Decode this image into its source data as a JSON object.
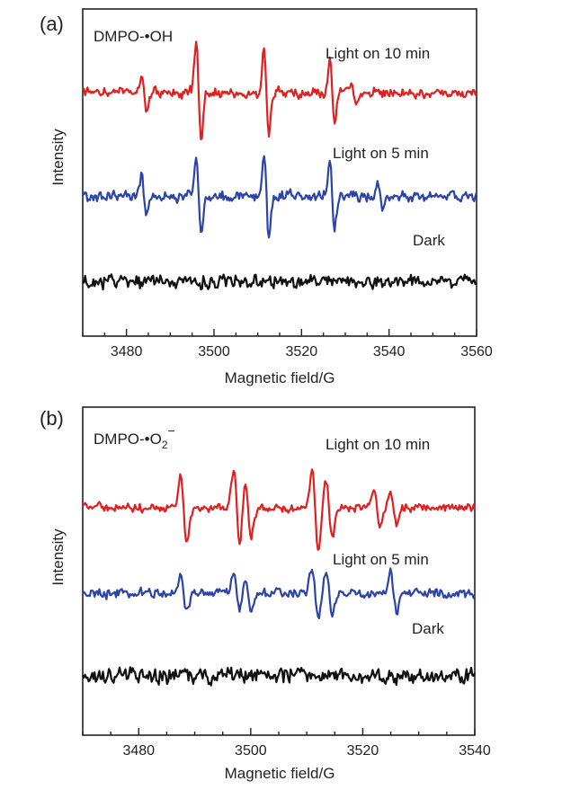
{
  "chart_data": [
    {
      "type": "line",
      "panel_label": "(a)",
      "species_label": "DMPO-•OH",
      "xlabel": "Magnetic field/G",
      "ylabel": "Intensity",
      "xlim": [
        3470,
        3560
      ],
      "xticks": [
        3480,
        3500,
        3520,
        3540,
        3560
      ],
      "y_axis_ticks_shown": false,
      "grid": false,
      "legend": "none (series labeled inline above each trace)",
      "series": [
        {
          "name": "Light on 10 min",
          "color": "#e02020",
          "baseline": 0.0,
          "peaks": [
            [
              3484,
              0.45
            ],
            [
              3496.5,
              1.1
            ],
            [
              3512,
              1.0
            ],
            [
              3527,
              0.7
            ],
            [
              3532,
              0.25
            ]
          ]
        },
        {
          "name": "Light on 5 min",
          "color": "#2c43a8",
          "baseline": 0.0,
          "peaks": [
            [
              3484,
              0.5
            ],
            [
              3496.5,
              0.95
            ],
            [
              3512,
              0.95
            ],
            [
              3527,
              0.8
            ],
            [
              3538,
              0.3
            ]
          ]
        },
        {
          "name": "Dark",
          "color": "#111111",
          "baseline": 0.0,
          "peaks": []
        }
      ]
    },
    {
      "type": "line",
      "panel_label": "(b)",
      "species_label": "DMPO-•O2−",
      "species_base": "DMPO-•O",
      "species_subscript": "2",
      "species_superscript": "−",
      "xlabel": "Magnetic field/G",
      "ylabel": "Intensity",
      "xlim": [
        3470,
        3540
      ],
      "xticks": [
        3480,
        3500,
        3520,
        3540
      ],
      "y_axis_ticks_shown": false,
      "grid": false,
      "legend": "none (series labeled inline above each trace)",
      "series": [
        {
          "name": "Light on 10 min",
          "color": "#e02020",
          "baseline": 0.0,
          "peaks": [
            [
              3488,
              0.8
            ],
            [
              3497.5,
              1.0
            ],
            [
              3499.5,
              0.7
            ],
            [
              3511.5,
              1.0
            ],
            [
              3514,
              0.7
            ],
            [
              3522.5,
              0.5
            ],
            [
              3525.5,
              0.4
            ]
          ]
        },
        {
          "name": "Light on 5 min",
          "color": "#2c43a8",
          "baseline": 0.0,
          "peaks": [
            [
              3488,
              0.45
            ],
            [
              3497.5,
              0.5
            ],
            [
              3499.5,
              0.4
            ],
            [
              3511.5,
              0.6
            ],
            [
              3514,
              0.5
            ],
            [
              3525.5,
              0.5
            ]
          ]
        },
        {
          "name": "Dark",
          "color": "#111111",
          "baseline": 0.0,
          "peaks": []
        }
      ]
    }
  ]
}
